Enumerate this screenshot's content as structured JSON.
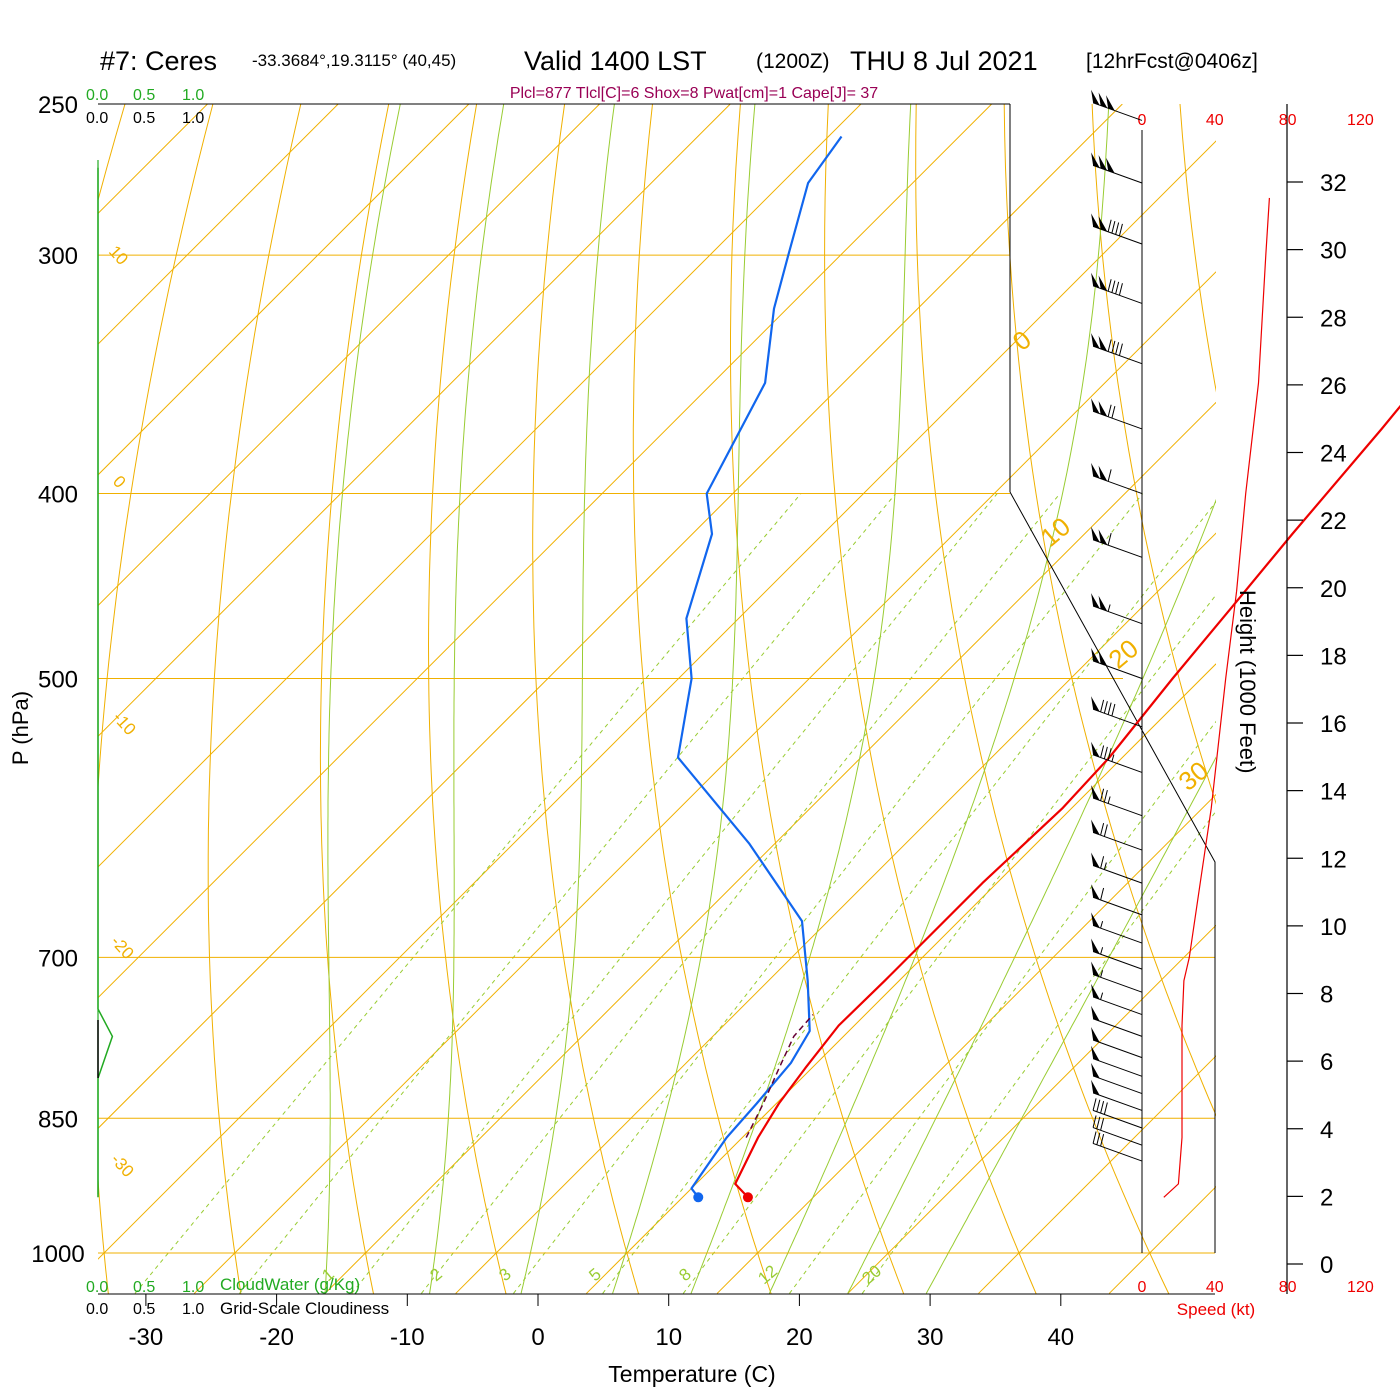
{
  "header": {
    "station": "#7: Ceres",
    "coords": "-33.3684°,19.3115° (40,45)",
    "valid": "Valid 1400 LST",
    "zulu": "(1200Z)",
    "date": "THU 8 Jul 2021",
    "forecast": "[12hrFcst@0406z]",
    "indices": "Plcl=877 Tlcl[C]=6 Shox=8 Pwat[cm]=1 Cape[J]= 37"
  },
  "colors": {
    "temperature": "#ee0000",
    "dewpoint": "#1166ee",
    "isotherm": "#f0b000",
    "dry_adiabat": "#f0b000",
    "moist_adiabat": "#99cc33",
    "mixing_ratio": "#99cc33",
    "cloud_water": "#22aa22",
    "wind_speed": "#ee0000",
    "indices": "#990055"
  },
  "chart_data": {
    "type": "line",
    "xlabel": "Temperature (C)",
    "ylabel": "P (hPa)",
    "x_ticks": [
      "-30",
      "-20",
      "-10",
      "0",
      "10",
      "20",
      "30",
      "40"
    ],
    "pressure_ticks": [
      "250",
      "300",
      "400",
      "500",
      "700",
      "850",
      "1000"
    ],
    "pressure_range_hpa": [
      250,
      1000
    ],
    "skew_deg_per_log_p": 45,
    "series": [
      {
        "name": "",
        "kind": "temperature",
        "points": [
          [
            15.0,
            935
          ],
          [
            13.0,
            920
          ],
          [
            11.2,
            870
          ],
          [
            10.2,
            835
          ],
          [
            9.5,
            800
          ],
          [
            8.8,
            760
          ],
          [
            8.9,
            720
          ],
          [
            8.9,
            690
          ],
          [
            8.9,
            640
          ],
          [
            9.3,
            585
          ],
          [
            9.0,
            550
          ],
          [
            7.8,
            500
          ],
          [
            6.9,
            460
          ],
          [
            5.9,
            420
          ],
          [
            4.7,
            370
          ],
          [
            3.5,
            333
          ],
          [
            2.5,
            300
          ],
          [
            1.9,
            270
          ],
          [
            1.2,
            260
          ]
        ]
      },
      {
        "name": "",
        "kind": "dewpoint",
        "points": [
          [
            11.2,
            935
          ],
          [
            10.0,
            925
          ],
          [
            8.8,
            870
          ],
          [
            8.5,
            835
          ],
          [
            8.0,
            795
          ],
          [
            7.0,
            765
          ],
          [
            3.0,
            720
          ],
          [
            -2.0,
            670
          ],
          [
            -12.0,
            610
          ],
          [
            -24.0,
            550
          ],
          [
            -29.0,
            500
          ],
          [
            -34.0,
            465
          ],
          [
            -38.5,
            420
          ],
          [
            -42.0,
            400
          ],
          [
            -46.0,
            350
          ],
          [
            -51.0,
            320
          ],
          [
            -54.0,
            300
          ],
          [
            -58.0,
            275
          ],
          [
            -59.0,
            260
          ]
        ]
      },
      {
        "name": "",
        "kind": "parcel",
        "points": [
          [
            10.3,
            870
          ],
          [
            9.0,
            835
          ],
          [
            7.5,
            800
          ],
          [
            6.2,
            770
          ],
          [
            6.0,
            750
          ]
        ]
      }
    ],
    "isotherm_labels": [
      "10",
      "0",
      "-10",
      "-20",
      "-30"
    ],
    "dry_adiabat_labels": [
      "0",
      "10",
      "20",
      "30"
    ],
    "moist_adiabat_labels": [
      "1",
      "2",
      "3",
      "5",
      "8",
      "12",
      "20"
    ],
    "cloud_scale": {
      "cloud_water_ticks": [
        "0.0",
        "0.5",
        "1.0"
      ],
      "cloud_water_label": "CloudWater (g/Kg)",
      "cloudiness_ticks": [
        "0.0",
        "0.5",
        "1.0"
      ],
      "cloudiness_label": "Grid-Scale Cloudiness",
      "cloud_water_profile": [
        [
          0.0,
          270
        ],
        [
          0.0,
          745
        ],
        [
          0.12,
          770
        ],
        [
          0.0,
          810
        ],
        [
          0.0,
          935
        ]
      ]
    },
    "wind": {
      "speed_ticks": [
        "0",
        "40",
        "80",
        "120"
      ],
      "speed_label": "Speed (kt)",
      "height_label": "Height (1000 Feet)",
      "height_ticks": [
        "0",
        "2",
        "4",
        "6",
        "8",
        "10",
        "12",
        "14",
        "16",
        "18",
        "20",
        "22",
        "24",
        "26",
        "28",
        "30",
        "32"
      ],
      "speed_profile_kt": [
        [
          12,
          935
        ],
        [
          20,
          920
        ],
        [
          22,
          870
        ],
        [
          22,
          800
        ],
        [
          22,
          760
        ],
        [
          23,
          720
        ],
        [
          26,
          700
        ],
        [
          32,
          640
        ],
        [
          38,
          585
        ],
        [
          46,
          500
        ],
        [
          52,
          450
        ],
        [
          57,
          400
        ],
        [
          64,
          350
        ],
        [
          68,
          300
        ],
        [
          70,
          280
        ]
      ],
      "barbs": [
        {
          "p": 255,
          "spd": 150
        },
        {
          "p": 275,
          "spd": 150
        },
        {
          "p": 296,
          "spd": 140
        },
        {
          "p": 318,
          "spd": 140
        },
        {
          "p": 342,
          "spd": 140
        },
        {
          "p": 370,
          "spd": 120
        },
        {
          "p": 400,
          "spd": 110
        },
        {
          "p": 432,
          "spd": 110
        },
        {
          "p": 468,
          "spd": 105
        },
        {
          "p": 500,
          "spd": 100
        },
        {
          "p": 530,
          "spd": 90
        },
        {
          "p": 560,
          "spd": 85
        },
        {
          "p": 590,
          "spd": 75
        },
        {
          "p": 615,
          "spd": 70
        },
        {
          "p": 640,
          "spd": 65
        },
        {
          "p": 665,
          "spd": 60
        },
        {
          "p": 688,
          "spd": 55
        },
        {
          "p": 710,
          "spd": 55
        },
        {
          "p": 730,
          "spd": 55
        },
        {
          "p": 750,
          "spd": 55
        },
        {
          "p": 770,
          "spd": 50
        },
        {
          "p": 790,
          "spd": 50
        },
        {
          "p": 808,
          "spd": 50
        },
        {
          "p": 825,
          "spd": 50
        },
        {
          "p": 842,
          "spd": 50
        },
        {
          "p": 860,
          "spd": 40
        },
        {
          "p": 878,
          "spd": 30
        },
        {
          "p": 895,
          "spd": 30
        }
      ]
    }
  }
}
